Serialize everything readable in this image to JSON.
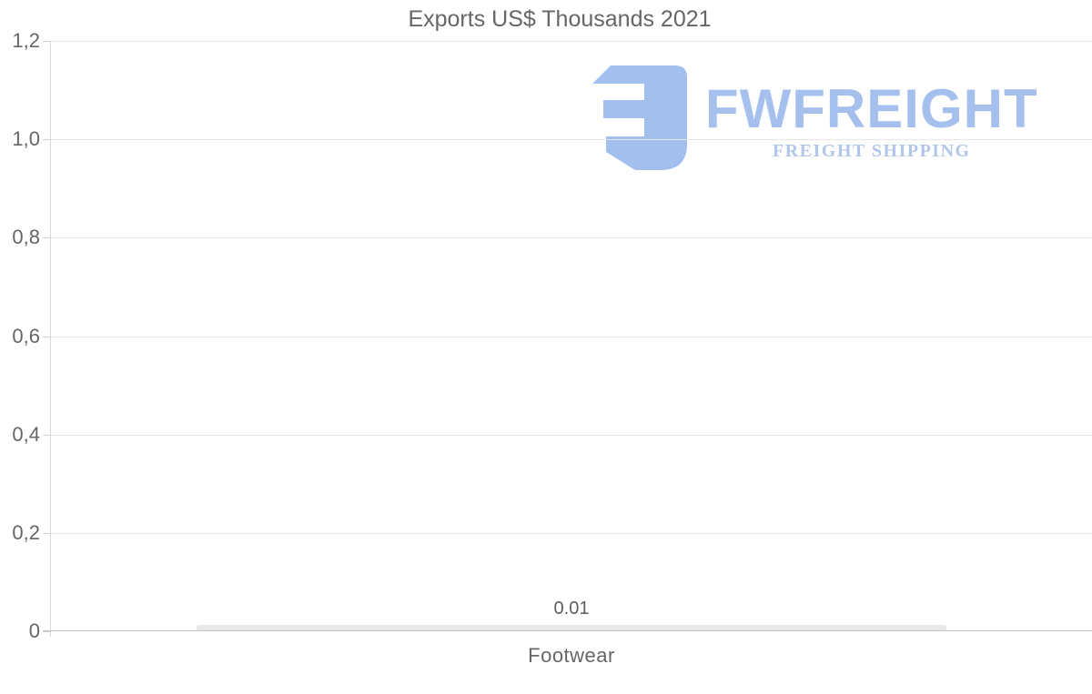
{
  "chart_data": {
    "type": "bar",
    "title": "Exports US$ Thousands 2021",
    "categories": [
      "Footwear"
    ],
    "values": [
      0.01
    ],
    "value_labels": [
      "0.01"
    ],
    "xlabel": "",
    "ylabel": "",
    "ylim": [
      0,
      1.2
    ],
    "yticks": [
      {
        "value": 1.2,
        "label": "1,2"
      },
      {
        "value": 1.0,
        "label": "1,0"
      },
      {
        "value": 0.8,
        "label": "0,8"
      },
      {
        "value": 0.6,
        "label": "0,6"
      },
      {
        "value": 0.4,
        "label": "0,4"
      },
      {
        "value": 0.2,
        "label": "0,2"
      },
      {
        "value": 0.0,
        "label": "0"
      }
    ],
    "grid": true,
    "legend": "none",
    "bar_color": "#e9e9e9"
  },
  "watermark": {
    "brand": "FWFREIGHT",
    "tagline": "FREIGHT SHIPPING",
    "logo_color": "#a3bfee",
    "text_color": "#a6c0ed",
    "tagline_color": "#b2c6ec"
  },
  "colors": {
    "title_text": "#666666",
    "axis_text": "#666666",
    "gridline": "#e6e6e6",
    "axis_line": "#c3c3c3",
    "bar": "#e9e9e9",
    "background": "#ffffff"
  }
}
